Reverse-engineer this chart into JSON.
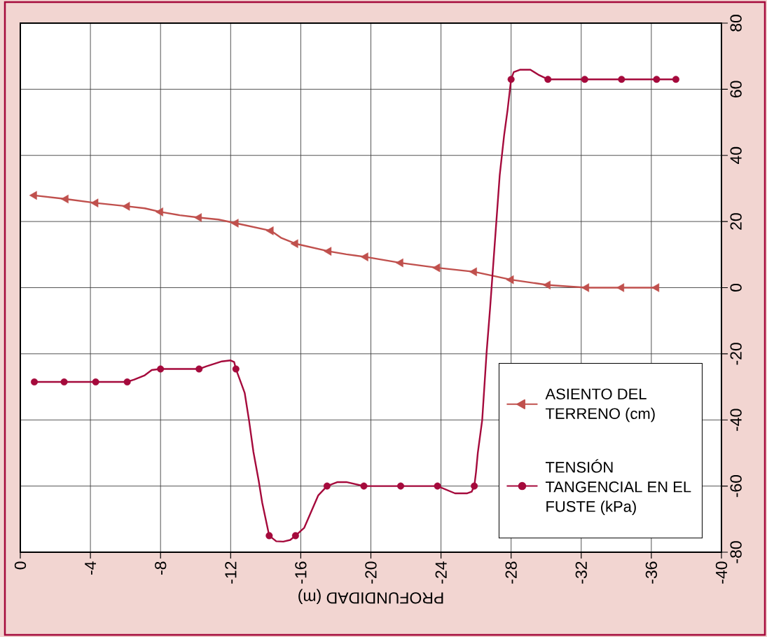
{
  "chart_data": {
    "type": "line",
    "xlabel": "PROFUNDIDAD (m)",
    "xlim": [
      0,
      -40
    ],
    "xticks": [
      0,
      -4,
      -8,
      -12,
      -16,
      -20,
      -24,
      -28,
      -32,
      -36,
      -40
    ],
    "ylim": [
      -80,
      80
    ],
    "yticks": [
      -80,
      -60,
      -40,
      -20,
      0,
      20,
      40,
      60,
      80
    ],
    "grid": true,
    "legend": "bottom right",
    "series": [
      {
        "name": "ASIENTO DEL TERRENO (cm)",
        "color": "#c0504d",
        "x": [
          -0.8,
          -2.6,
          -4.3,
          -6.1,
          -7.1,
          -8.0,
          -9.1,
          -10.2,
          -11.3,
          -12.3,
          -14.3,
          -14.9,
          -15.7,
          -17.6,
          -18.6,
          -19.7,
          -21.7,
          -23.8,
          -25.9,
          -28.0,
          -30.1,
          -32.3,
          -34.3,
          -36.3
        ],
        "values": [
          27.9,
          26.8,
          25.6,
          24.6,
          24.0,
          22.9,
          21.9,
          21.2,
          20.6,
          19.5,
          17.2,
          15.0,
          13.3,
          11.0,
          10.1,
          9.3,
          7.5,
          6.0,
          4.8,
          2.4,
          0.8,
          0,
          0,
          0
        ]
      },
      {
        "type": "scatter",
        "color": "#c0504d",
        "marker": "triangle",
        "x": [
          -0.8,
          -2.6,
          -4.3,
          -6.1,
          -8.0,
          -10.2,
          -12.3,
          -14.3,
          -15.7,
          -17.6,
          -19.7,
          -21.7,
          -23.8,
          -25.9,
          -28.0,
          -30.1,
          -32.3,
          -34.3,
          -36.3
        ],
        "values": [
          27.9,
          26.8,
          25.6,
          24.6,
          22.9,
          21.2,
          19.5,
          17.2,
          13.3,
          11.0,
          9.3,
          7.5,
          6.0,
          4.8,
          2.4,
          0.8,
          0,
          0,
          0
        ]
      },
      {
        "name": "TENSIÓN TANGENCIAL EN EL FUSTE (kPa)",
        "color": "#a50a3c",
        "x": [
          -0.8,
          -2.5,
          -4.3,
          -6.1,
          -6.5,
          -7.1,
          -7.5,
          -8.0,
          -10.2,
          -10.6,
          -11.5,
          -12.0,
          -12.2,
          -12.3,
          -12.6,
          -12.8,
          -13.05,
          -13.3,
          -13.6,
          -13.8,
          -14.2,
          -14.6,
          -15.0,
          -15.4,
          -15.7,
          -16.2,
          -17.0,
          -17.5,
          -18.1,
          -18.6,
          -19.6,
          -21.7,
          -23.8,
          -24.8,
          -25.5,
          -25.75,
          -25.9,
          -26.0,
          -26.1,
          -26.35,
          -26.6,
          -26.8,
          -27.35,
          -27.6,
          -27.8,
          -28.0,
          -28.15,
          -28.5,
          -29.1,
          -29.55,
          -30.1,
          -32.2,
          -34.3,
          -36.3,
          -37.4
        ],
        "values": [
          -28.5,
          -28.5,
          -28.5,
          -28.5,
          -27.8,
          -26.5,
          -24.9,
          -24.6,
          -24.6,
          -23.8,
          -22.3,
          -22.0,
          -22.5,
          -24.6,
          -28.9,
          -31.8,
          -40.2,
          -49.7,
          -58.4,
          -65.0,
          -75,
          -76.7,
          -76.8,
          -76.3,
          -75,
          -72.6,
          -62.8,
          -60,
          -58.8,
          -58.8,
          -60,
          -60,
          -60,
          -62.2,
          -62.2,
          -61.7,
          -60,
          -55.7,
          -50.0,
          -40.1,
          -19.7,
          -6.3,
          34.0,
          46.0,
          53.8,
          63,
          65.2,
          65.9,
          65.9,
          64.4,
          63,
          63,
          63,
          63,
          63
        ]
      },
      {
        "type": "scatter",
        "color": "#a50a3c",
        "marker": "circle",
        "x": [
          -0.8,
          -2.5,
          -4.3,
          -6.1,
          -8.0,
          -10.2,
          -12.3,
          -14.2,
          -15.7,
          -17.5,
          -19.6,
          -21.7,
          -23.8,
          -25.9,
          -28.0,
          -30.1,
          -32.2,
          -34.3,
          -36.3,
          -37.4
        ],
        "values": [
          -28.5,
          -28.5,
          -28.5,
          -28.5,
          -24.6,
          -24.6,
          -24.6,
          -75,
          -75,
          -60,
          -60,
          -60,
          -60,
          -60,
          63,
          63,
          63,
          63,
          63,
          63
        ]
      }
    ]
  }
}
